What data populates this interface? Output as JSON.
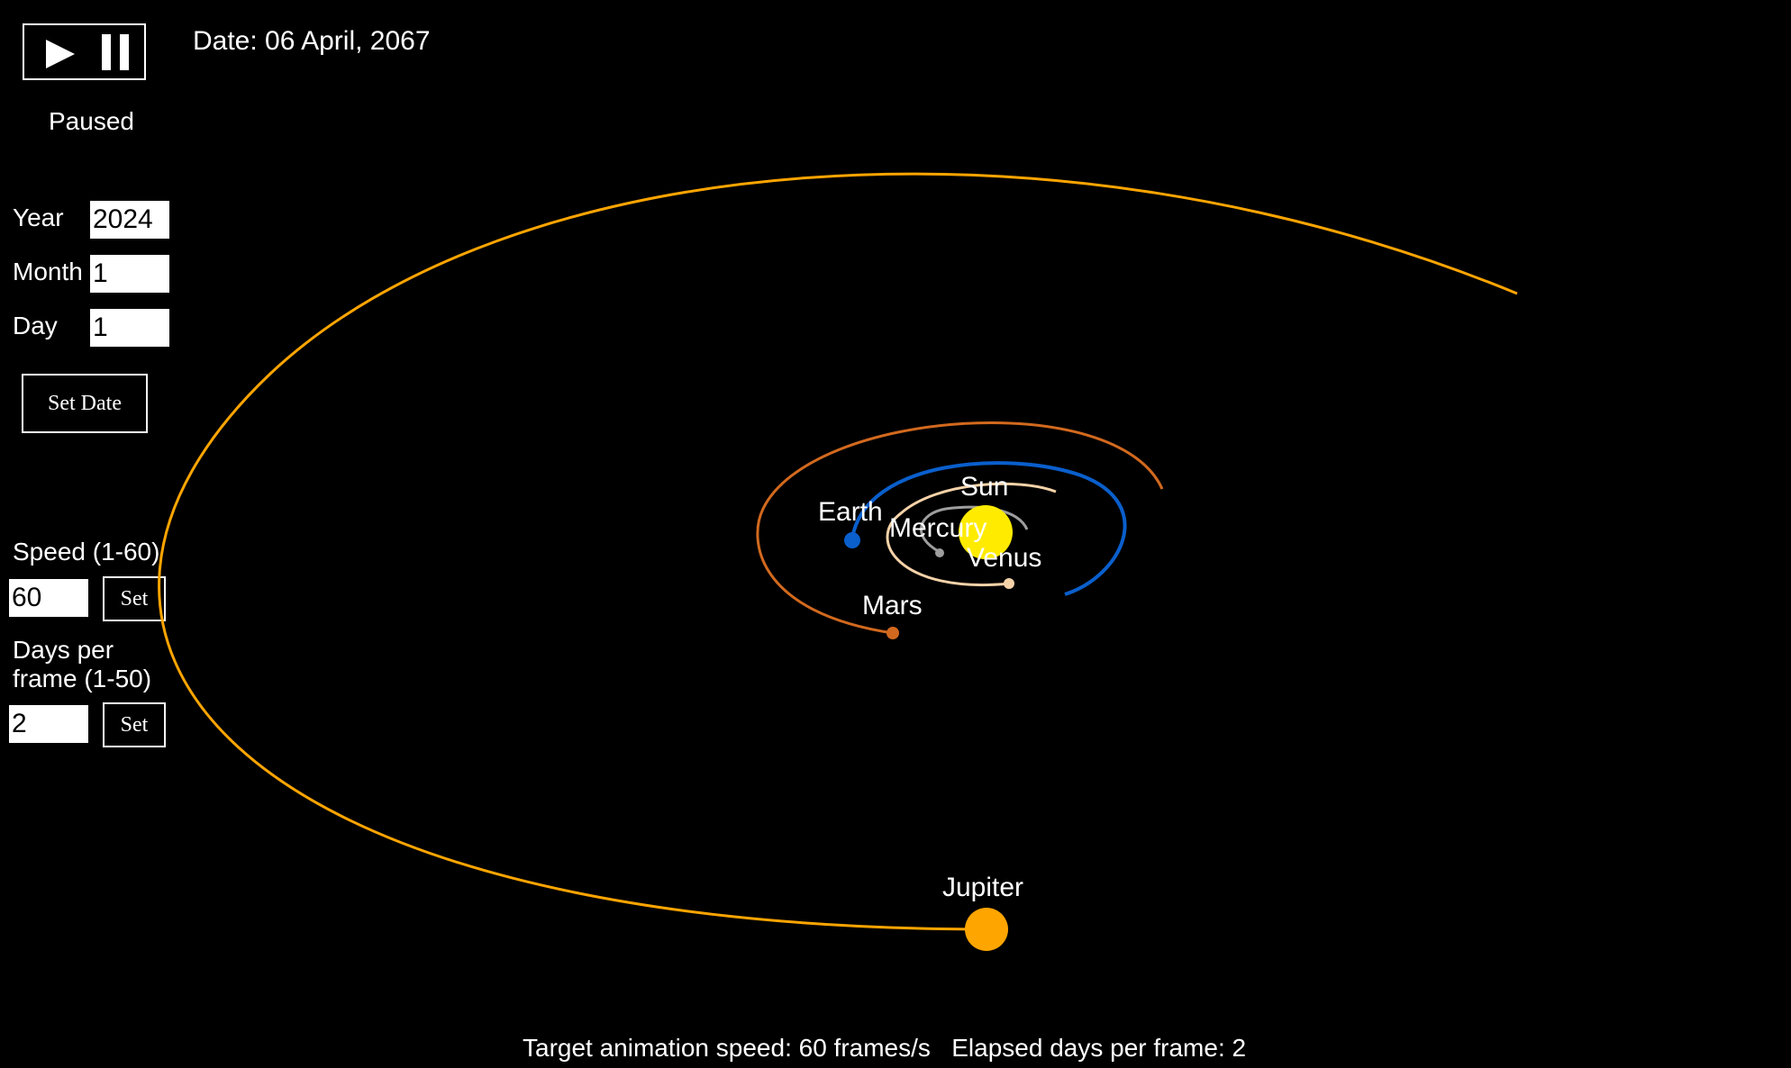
{
  "header": {
    "date_label": "Date: 06 April, 2067",
    "status": "Paused"
  },
  "controls": {
    "year_label": "Year",
    "year_value": "2024",
    "month_label": "Month",
    "month_value": "1",
    "day_label": "Day",
    "day_value": "1",
    "set_date_label": "Set Date",
    "speed_label": "Speed (1-60)",
    "speed_value": "60",
    "speed_set_label": "Set",
    "days_per_frame_label_line1": "Days per",
    "days_per_frame_label_line2": "frame (1-50)",
    "days_per_frame_value": "2",
    "days_set_label": "Set",
    "play_icon": "play-icon",
    "pause_icon": "pause-icon"
  },
  "footer": {
    "status_text": "Target animation speed: 60 frames/s   Elapsed days per frame: 2"
  },
  "bodies": {
    "sun": "Sun",
    "mercury": "Mercury",
    "venus": "Venus",
    "earth": "Earth",
    "mars": "Mars",
    "jupiter": "Jupiter"
  },
  "colors": {
    "background": "#000000",
    "sun": "#FFEB00",
    "mercury": "#9E9E9E",
    "venus": "#F5D2A8",
    "earth": "#0A5FCC",
    "mars": "#D2691E",
    "jupiter": "#FFA500"
  }
}
